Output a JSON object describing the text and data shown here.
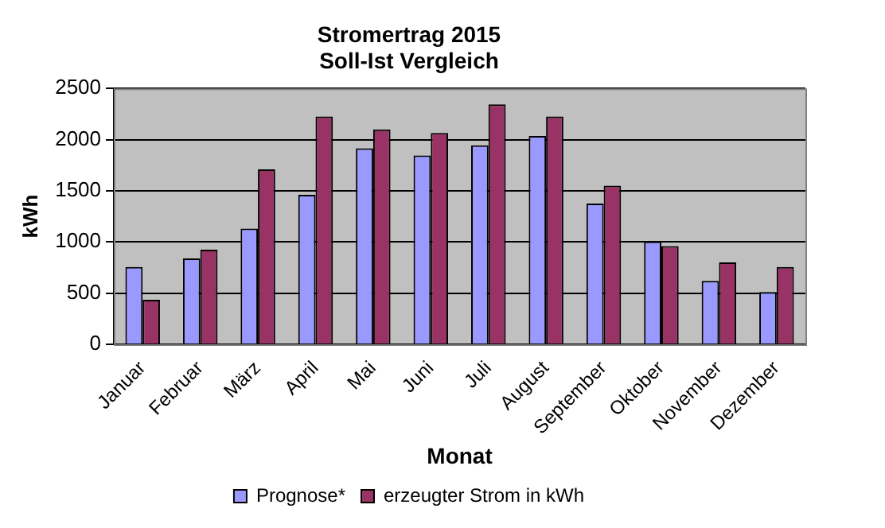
{
  "chart_data": {
    "type": "bar",
    "title": "Stromertrag 2015\nSoll-Ist Vergleich",
    "xlabel": "Monat",
    "ylabel": "kWh",
    "categories": [
      "Januar",
      "Februar",
      "März",
      "April",
      "Mai",
      "Juni",
      "Juli",
      "August",
      "September",
      "Oktober",
      "November",
      "Dezember"
    ],
    "series": [
      {
        "name": "Prognose*",
        "color": "#9999ff",
        "values": [
          755,
          840,
          1130,
          1460,
          1915,
          1845,
          1945,
          2035,
          1375,
          1005,
          620,
          510
        ]
      },
      {
        "name": "erzeugter Strom in kWh",
        "color": "#993366",
        "values": [
          435,
          925,
          1710,
          2225,
          2100,
          2065,
          2345,
          2225,
          1550,
          960,
          800,
          755
        ]
      }
    ],
    "ylim": [
      0,
      2500
    ],
    "yticks": [
      0,
      500,
      1000,
      1500,
      2000,
      2500
    ],
    "grid": "y",
    "legend": "bottom"
  }
}
